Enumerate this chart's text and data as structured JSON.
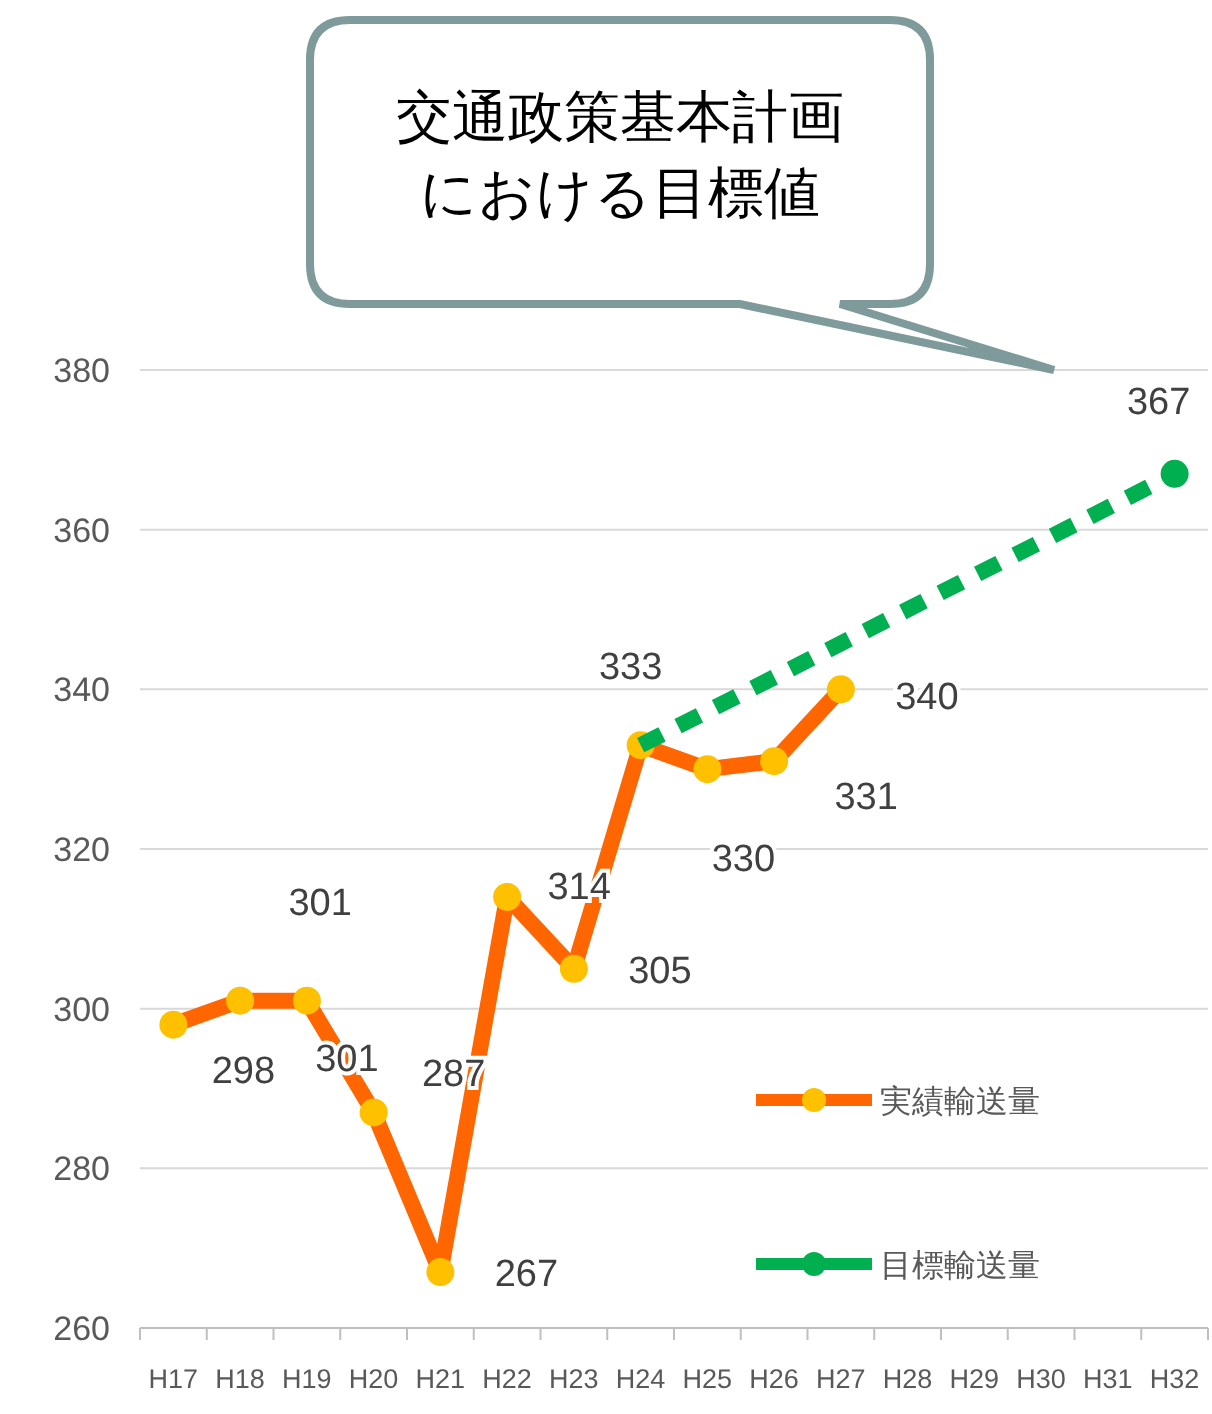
{
  "chart_data": {
    "type": "line",
    "categories": [
      "H17",
      "H18",
      "H19",
      "H20",
      "H21",
      "H22",
      "H23",
      "H24",
      "H25",
      "H26",
      "H27",
      "H28",
      "H29",
      "H30",
      "H31",
      "H32"
    ],
    "series": [
      {
        "name": "実績輸送量",
        "color": "#ff6600",
        "colors": [
          "#ffc000",
          "#ffc000",
          "#ffc000",
          "#ffc000",
          "#ffc000",
          "#ffc000",
          "#ffc000",
          "#ffc000",
          "#ffc000",
          "#ffc000",
          "#ffc000",
          null,
          null,
          null,
          null,
          null
        ],
        "values": [
          298,
          301,
          301,
          287,
          267,
          314,
          305,
          333,
          330,
          331,
          340,
          null,
          null,
          null,
          null,
          null
        ],
        "value_labels": [
          "298",
          "301",
          "301",
          "287",
          "267",
          "314",
          "305",
          "333",
          "330",
          "331",
          "340",
          null,
          null,
          null,
          null,
          null
        ]
      },
      {
        "name": "目標輸送量",
        "color": "#00b050",
        "line_style": "dashed",
        "values": [
          null,
          null,
          null,
          null,
          null,
          null,
          null,
          333,
          null,
          null,
          null,
          null,
          null,
          null,
          null,
          367
        ],
        "value_labels": [
          null,
          null,
          null,
          null,
          null,
          null,
          null,
          null,
          null,
          null,
          null,
          null,
          null,
          null,
          null,
          "367"
        ]
      }
    ],
    "ylim": [
      260,
      380
    ],
    "yticks": [
      260,
      280,
      300,
      320,
      340,
      360,
      380
    ],
    "grid": "y",
    "legend": "bottom right",
    "marker": "circle",
    "annotations": [
      "交通政策基本計画における目標値"
    ]
  }
}
